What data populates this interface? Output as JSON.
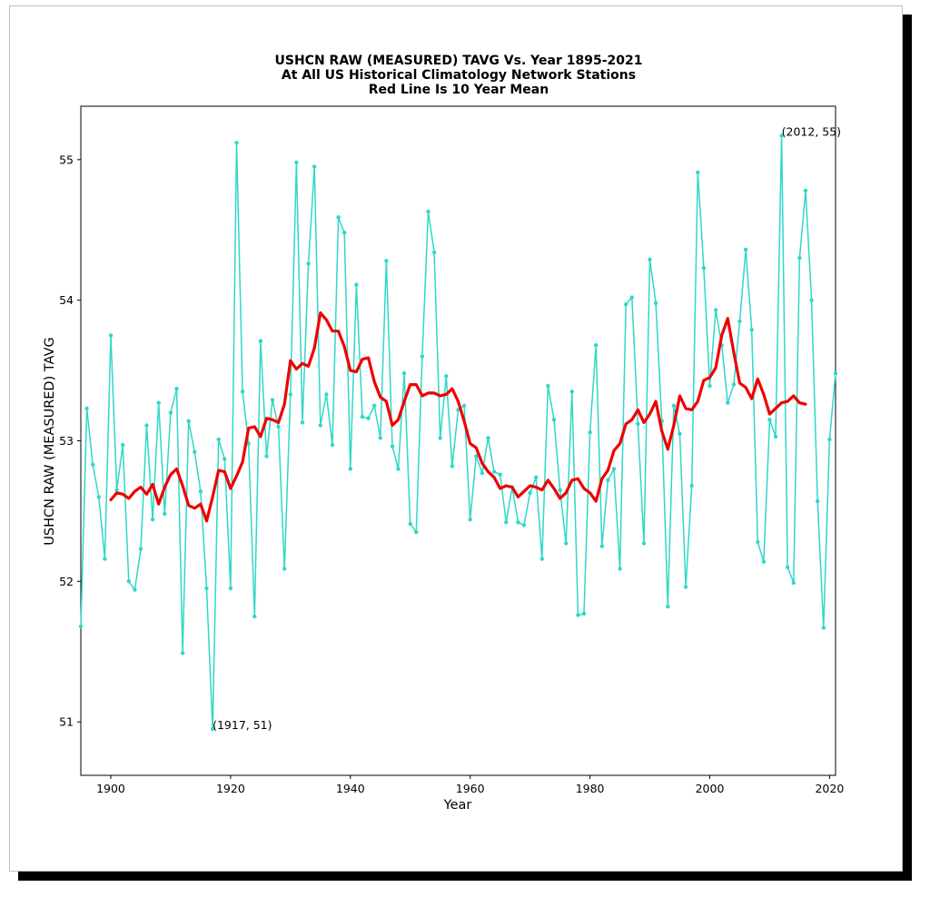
{
  "chart_data": {
    "type": "line",
    "title": [
      "USHCN RAW (MEASURED) TAVG Vs. Year 1895-2021",
      "At All US Historical Climatology Network Stations",
      "Red Line Is 10 Year Mean"
    ],
    "xlabel": "Year",
    "ylabel": "USHCN RAW (MEASURED) TAVG",
    "xlim": [
      1895,
      2021
    ],
    "ylim": [
      50.62,
      55.38
    ],
    "xticks": [
      1900,
      1920,
      1940,
      1960,
      1980,
      2000,
      2020
    ],
    "yticks": [
      51,
      52,
      53,
      54,
      55
    ],
    "grid": false,
    "colors": {
      "series": "#2fd8c8",
      "mean": "#ee0000"
    },
    "series": [
      {
        "x": [
          1895,
          1896,
          1897,
          1898,
          1899,
          1900,
          1901,
          1902,
          1903,
          1904,
          1905,
          1906,
          1907,
          1908,
          1909,
          1910,
          1911,
          1912,
          1913,
          1914,
          1915,
          1916,
          1917,
          1918,
          1919,
          1920,
          1921,
          1922,
          1923,
          1924,
          1925,
          1926,
          1927,
          1928,
          1929,
          1930,
          1931,
          1932,
          1933,
          1934,
          1935,
          1936,
          1937,
          1938,
          1939,
          1940,
          1941,
          1942,
          1943,
          1944,
          1945,
          1946,
          1947,
          1948,
          1949,
          1950,
          1951,
          1952,
          1953,
          1954,
          1955,
          1956,
          1957,
          1958,
          1959,
          1960,
          1961,
          1962,
          1963,
          1964,
          1965,
          1966,
          1967,
          1968,
          1969,
          1970,
          1971,
          1972,
          1973,
          1974,
          1975,
          1976,
          1977,
          1978,
          1979,
          1980,
          1981,
          1982,
          1983,
          1984,
          1985,
          1986,
          1987,
          1988,
          1989,
          1990,
          1991,
          1992,
          1993,
          1994,
          1995,
          1996,
          1997,
          1998,
          1999,
          2000,
          2001,
          2002,
          2003,
          2004,
          2005,
          2006,
          2007,
          2008,
          2009,
          2010,
          2011,
          2012,
          2013,
          2014,
          2015,
          2016,
          2017,
          2018,
          2019,
          2020,
          2021
        ],
        "values": [
          51.68,
          53.23,
          52.83,
          52.6,
          52.16,
          53.75,
          52.65,
          52.97,
          52,
          51.94,
          52.23,
          53.11,
          52.44,
          53.27,
          52.48,
          53.2,
          53.37,
          51.49,
          53.14,
          52.92,
          52.64,
          51.95,
          50.95,
          53.01,
          52.87,
          51.95,
          55.12,
          53.35,
          52.98,
          51.75,
          53.71,
          52.89,
          53.29,
          53.1,
          52.09,
          53.33,
          54.98,
          53.13,
          54.26,
          54.95,
          53.11,
          53.33,
          52.97,
          54.59,
          54.48,
          52.8,
          54.11,
          53.17,
          53.16,
          53.25,
          53.02,
          54.28,
          52.96,
          52.8,
          53.48,
          52.41,
          52.35,
          53.6,
          54.63,
          54.34,
          53.02,
          53.46,
          52.82,
          53.22,
          53.25,
          52.44,
          52.89,
          52.77,
          53.02,
          52.78,
          52.76,
          52.42,
          52.67,
          52.42,
          52.4,
          52.63,
          52.74,
          52.16,
          53.39,
          53.15,
          52.65,
          52.27,
          53.35,
          51.76,
          51.77,
          53.06,
          53.68,
          52.25,
          52.72,
          52.8,
          52.09,
          53.97,
          54.02,
          53.12,
          52.27,
          54.29,
          53.98,
          53.14,
          51.82,
          53.25,
          53.05,
          51.96,
          52.68,
          54.91,
          54.23,
          53.39,
          53.93,
          53.68,
          53.27,
          53.4,
          53.85,
          54.36,
          53.79,
          52.28,
          52.14,
          53.15,
          53.03,
          55.17,
          52.1,
          51.99,
          54.3,
          54.78,
          54,
          52.57,
          51.67,
          53.01,
          53.48
        ]
      },
      {
        "name": "10 Year Mean",
        "x": [
          1900,
          1901,
          1902,
          1903,
          1904,
          1905,
          1906,
          1907,
          1908,
          1909,
          1910,
          1911,
          1912,
          1913,
          1914,
          1915,
          1916,
          1917,
          1918,
          1919,
          1920,
          1921,
          1922,
          1923,
          1924,
          1925,
          1926,
          1927,
          1928,
          1929,
          1930,
          1931,
          1932,
          1933,
          1934,
          1935,
          1936,
          1937,
          1938,
          1939,
          1940,
          1941,
          1942,
          1943,
          1944,
          1945,
          1946,
          1947,
          1948,
          1949,
          1950,
          1951,
          1952,
          1953,
          1954,
          1955,
          1956,
          1957,
          1958,
          1959,
          1960,
          1961,
          1962,
          1963,
          1964,
          1965,
          1966,
          1967,
          1968,
          1969,
          1970,
          1971,
          1972,
          1973,
          1974,
          1975,
          1976,
          1977,
          1978,
          1979,
          1980,
          1981,
          1982,
          1983,
          1984,
          1985,
          1986,
          1987,
          1988,
          1989,
          1990,
          1991,
          1992,
          1993,
          1994,
          1995,
          1996,
          1997,
          1998,
          1999,
          2000,
          2001,
          2002,
          2003,
          2004,
          2005,
          2006,
          2007,
          2008,
          2009,
          2010,
          2011,
          2012,
          2013,
          2014,
          2015,
          2016
        ],
        "values": [
          52.58,
          52.63,
          52.62,
          52.59,
          52.64,
          52.67,
          52.62,
          52.69,
          52.55,
          52.67,
          52.76,
          52.8,
          52.68,
          52.54,
          52.52,
          52.55,
          52.43,
          52.6,
          52.79,
          52.78,
          52.66,
          52.75,
          52.85,
          53.09,
          53.1,
          53.03,
          53.16,
          53.15,
          53.13,
          53.26,
          53.57,
          53.51,
          53.55,
          53.53,
          53.66,
          53.91,
          53.86,
          53.78,
          53.78,
          53.67,
          53.5,
          53.49,
          53.58,
          53.59,
          53.42,
          53.31,
          53.28,
          53.11,
          53.15,
          53.28,
          53.4,
          53.4,
          53.32,
          53.34,
          53.34,
          53.32,
          53.33,
          53.37,
          53.28,
          53.14,
          52.98,
          52.95,
          52.84,
          52.78,
          52.74,
          52.66,
          52.68,
          52.67,
          52.6,
          52.64,
          52.68,
          52.67,
          52.65,
          52.72,
          52.66,
          52.59,
          52.63,
          52.72,
          52.73,
          52.66,
          52.63,
          52.57,
          52.73,
          52.79,
          52.93,
          52.98,
          53.12,
          53.15,
          53.22,
          53.13,
          53.19,
          53.28,
          53.07,
          52.94,
          53.11,
          53.32,
          53.23,
          53.22,
          53.28,
          53.43,
          53.45,
          53.52,
          53.75,
          53.87,
          53.63,
          53.41,
          53.38,
          53.3,
          53.44,
          53.33,
          53.19,
          53.23,
          53.27,
          53.28,
          53.32,
          53.27,
          53.26
        ]
      }
    ],
    "annotations": [
      {
        "text": "(1917, 51)",
        "x": 1917,
        "y": 50.95
      },
      {
        "text": "(2012, 55)",
        "x": 2012,
        "y": 55.17
      }
    ]
  }
}
